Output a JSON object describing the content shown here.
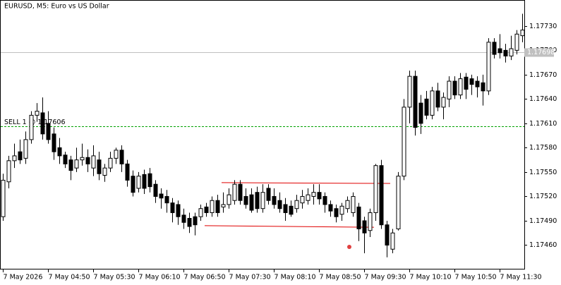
{
  "chart_data": {
    "type": "candlestick",
    "title": "EURUSD, M5:  Euro vs US Dollar",
    "categories": [
      "7 May 2026",
      null,
      null,
      null,
      null,
      null,
      null,
      null,
      "7 May 04:50",
      null,
      null,
      null,
      null,
      null,
      null,
      null,
      "7 May 05:30",
      null,
      null,
      null,
      null,
      null,
      null,
      null,
      "7 May 06:10",
      null,
      null,
      null,
      null,
      null,
      null,
      null,
      "7 May 06:50",
      null,
      null,
      null,
      null,
      null,
      null,
      null,
      "7 May 07:30",
      null,
      null,
      null,
      null,
      null,
      null,
      null,
      "7 May 08:10",
      null,
      null,
      null,
      null,
      null,
      null,
      null,
      "7 May 08:50",
      null,
      null,
      null,
      null,
      null,
      null,
      null,
      "7 May 09:30",
      null,
      null,
      null,
      null,
      null,
      null,
      null,
      "7 May 10:10",
      null,
      null,
      null,
      null,
      null,
      null,
      null,
      "7 May 10:50",
      null,
      null,
      null,
      null,
      null,
      null,
      null,
      "7 May 11:30",
      null,
      null,
      null,
      null
    ],
    "open": [
      1.17495,
      1.17538,
      1.17564,
      1.17575,
      1.17567,
      1.1759,
      1.1762,
      1.17623,
      1.1761,
      1.17597,
      1.1758,
      1.17571,
      1.17565,
      1.17555,
      1.17565,
      1.17568,
      1.17555,
      1.17565,
      1.17546,
      1.17555,
      1.17567,
      1.17577,
      1.1756,
      1.17545,
      1.1753,
      1.17547,
      1.17548,
      1.17535,
      1.17523,
      1.1752,
      1.17512,
      1.1751,
      1.17497,
      1.17493,
      1.17495,
      1.17495,
      1.17507,
      1.175,
      1.17515,
      1.17507,
      1.1751,
      1.17515,
      1.17535,
      1.1752,
      1.17522,
      1.17525,
      1.17505,
      1.1753,
      1.1752,
      1.17515,
      1.1751,
      1.17508,
      1.17505,
      1.17512,
      1.17515,
      1.1752,
      1.17525,
      1.1752,
      1.1751,
      1.17505,
      1.17498,
      1.17505,
      1.175,
      1.17507,
      1.1749,
      1.17478,
      1.175,
      1.17558,
      1.17485,
      1.17455,
      1.1748,
      1.17545,
      1.1763,
      1.17668,
      1.17635,
      1.1764,
      1.1762,
      1.1765,
      1.1763,
      1.1764,
      1.17662,
      1.17645,
      1.17667,
      1.17665,
      1.17662,
      1.1766,
      1.1765,
      1.1771,
      1.17702,
      1.177,
      1.17693,
      1.177,
      1.17718
    ],
    "high": [
      1.17548,
      1.1757,
      1.17585,
      1.1759,
      1.176,
      1.17625,
      1.17635,
      1.17642,
      1.17625,
      1.17605,
      1.17592,
      1.17575,
      1.1757,
      1.1758,
      1.17585,
      1.17578,
      1.17583,
      1.17575,
      1.1756,
      1.17575,
      1.1758,
      1.17583,
      1.17565,
      1.17552,
      1.1755,
      1.17553,
      1.17555,
      1.1754,
      1.1753,
      1.17528,
      1.17518,
      1.17515,
      1.17505,
      1.175,
      1.175,
      1.1751,
      1.17512,
      1.1752,
      1.17522,
      1.17525,
      1.1753,
      1.1754,
      1.1754,
      1.1753,
      1.1753,
      1.17532,
      1.17535,
      1.17535,
      1.1753,
      1.17525,
      1.17518,
      1.17515,
      1.17522,
      1.17528,
      1.1753,
      1.17535,
      1.17535,
      1.17525,
      1.17515,
      1.1751,
      1.17512,
      1.1752,
      1.17525,
      1.17512,
      1.17495,
      1.17505,
      1.1756,
      1.17565,
      1.1749,
      1.1748,
      1.1755,
      1.1764,
      1.17675,
      1.17675,
      1.17645,
      1.1765,
      1.17655,
      1.1766,
      1.17648,
      1.17668,
      1.17668,
      1.17672,
      1.17672,
      1.1767,
      1.17668,
      1.1767,
      1.17715,
      1.17715,
      1.1772,
      1.17708,
      1.17718,
      1.17725,
      1.17745
    ],
    "low": [
      1.1749,
      1.1753,
      1.17555,
      1.1756,
      1.1756,
      1.17585,
      1.17612,
      1.1759,
      1.17585,
      1.17565,
      1.1756,
      1.17555,
      1.1754,
      1.1755,
      1.17558,
      1.1755,
      1.17545,
      1.1754,
      1.17538,
      1.1755,
      1.1756,
      1.1755,
      1.17532,
      1.1752,
      1.17525,
      1.17523,
      1.17525,
      1.17512,
      1.17505,
      1.175,
      1.17488,
      1.17485,
      1.1748,
      1.17475,
      1.17472,
      1.1749,
      1.17495,
      1.17495,
      1.17495,
      1.175,
      1.17505,
      1.1751,
      1.1751,
      1.17505,
      1.175,
      1.175,
      1.175,
      1.1751,
      1.17505,
      1.175,
      1.1749,
      1.17495,
      1.175,
      1.17505,
      1.1751,
      1.1751,
      1.1751,
      1.175,
      1.17495,
      1.17488,
      1.1749,
      1.175,
      1.17495,
      1.17465,
      1.1745,
      1.1747,
      1.1749,
      1.1748,
      1.17445,
      1.1745,
      1.17478,
      1.1754,
      1.1761,
      1.17595,
      1.17597,
      1.17615,
      1.17615,
      1.17625,
      1.17615,
      1.1763,
      1.1764,
      1.1764,
      1.1764,
      1.17645,
      1.17642,
      1.17632,
      1.17645,
      1.1769,
      1.1769,
      1.17685,
      1.17688,
      1.17695,
      1.1771
    ],
    "close": [
      1.1754,
      1.17564,
      1.1757,
      1.17565,
      1.1759,
      1.1762,
      1.17625,
      1.17597,
      1.1759,
      1.17575,
      1.1757,
      1.1756,
      1.17552,
      1.17565,
      1.17568,
      1.1756,
      1.1757,
      1.17548,
      1.17555,
      1.17567,
      1.17577,
      1.1756,
      1.1754,
      1.17525,
      1.17545,
      1.1753,
      1.17532,
      1.1752,
      1.17518,
      1.17512,
      1.175,
      1.17495,
      1.17488,
      1.17483,
      1.17485,
      1.17505,
      1.175,
      1.17515,
      1.175,
      1.1751,
      1.17522,
      1.17535,
      1.17515,
      1.1751,
      1.17503,
      1.17505,
      1.17525,
      1.17515,
      1.1751,
      1.17505,
      1.175,
      1.17498,
      1.17515,
      1.1752,
      1.17522,
      1.17525,
      1.17517,
      1.1751,
      1.17502,
      1.17495,
      1.17508,
      1.17515,
      1.1752,
      1.1748,
      1.17475,
      1.175,
      1.17558,
      1.17485,
      1.1746,
      1.17475,
      1.17545,
      1.1763,
      1.17668,
      1.17605,
      1.1761,
      1.1762,
      1.1765,
      1.1763,
      1.17642,
      1.17662,
      1.17645,
      1.17665,
      1.17652,
      1.17658,
      1.17655,
      1.1765,
      1.1771,
      1.17695,
      1.17697,
      1.17693,
      1.17702,
      1.1772,
      1.17725
    ],
    "ylim": [
      1.1743,
      1.17762
    ],
    "yticks": [
      {
        "value": 1.1773,
        "label": "1.17730"
      },
      {
        "value": 1.177,
        "label": "1.17700"
      },
      {
        "value": 1.1767,
        "label": "1.17670"
      },
      {
        "value": 1.1764,
        "label": "1.17640"
      },
      {
        "value": 1.1761,
        "label": "1.17610"
      },
      {
        "value": 1.1758,
        "label": "1.17580"
      },
      {
        "value": 1.1755,
        "label": "1.17550"
      },
      {
        "value": 1.1752,
        "label": "1.17520"
      },
      {
        "value": 1.1749,
        "label": "1.17490"
      },
      {
        "value": 1.1746,
        "label": "1.17460"
      }
    ],
    "bid": {
      "value": 1.17698,
      "label": "1.17698"
    },
    "order": {
      "value": 1.17606,
      "label": "SELL 1 @ 1.17606"
    },
    "channel": [
      {
        "values": [
          1.17537,
          1.17536
        ],
        "color": "#e00000"
      },
      {
        "values": [
          1.17484,
          1.17482
        ],
        "color": "#e00000"
      }
    ]
  }
}
